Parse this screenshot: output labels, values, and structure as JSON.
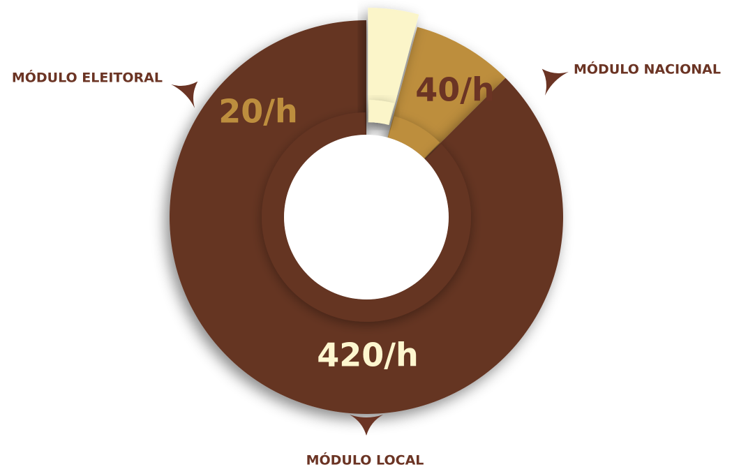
{
  "chart_data": {
    "type": "pie",
    "title": "",
    "unit": "/h",
    "slices": [
      {
        "name": "MÓDULO NACIONAL",
        "value": 40,
        "value_label": "40/h",
        "color": "#bd8e3e",
        "text_color": "#6b3424",
        "label_position": "top-right"
      },
      {
        "name": "MÓDULO LOCAL",
        "value": 420,
        "value_label": "420/h",
        "color": "#653424",
        "text_color": "#fdf6cf",
        "label_position": "bottom"
      },
      {
        "name": "MÓDULO ELEITORAL",
        "value": 20,
        "value_label": "20/h",
        "color": "#fbf5c9",
        "text_color": "#bd8e3e",
        "label_position": "top-left"
      }
    ]
  }
}
